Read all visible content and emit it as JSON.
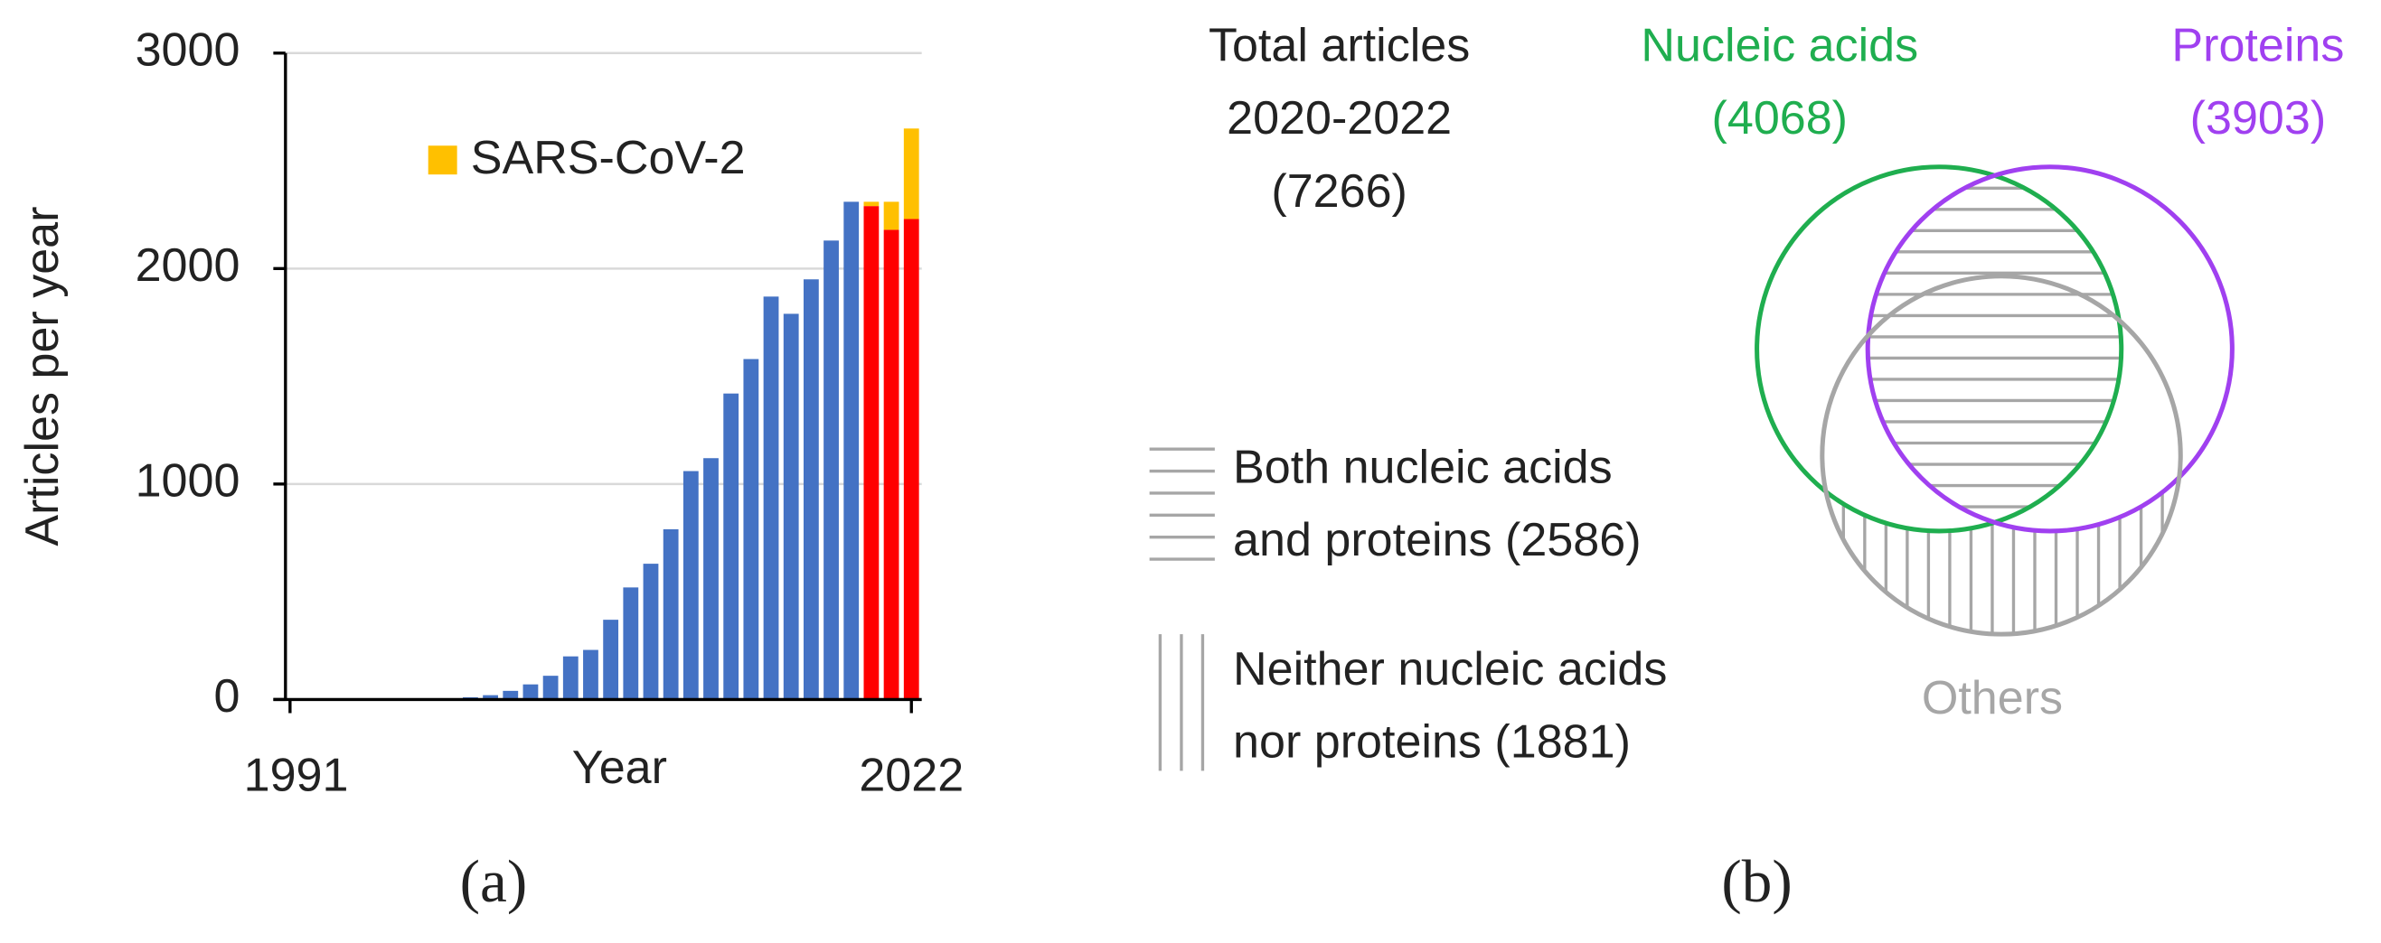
{
  "chart_data": {
    "type": "bar",
    "stacked": true,
    "xlabel": "Year",
    "ylabel": "Articles per year",
    "categories": [
      "1991",
      null,
      null,
      null,
      null,
      null,
      null,
      null,
      null,
      null,
      null,
      null,
      null,
      null,
      null,
      null,
      null,
      null,
      null,
      null,
      null,
      null,
      null,
      null,
      null,
      null,
      null,
      null,
      null,
      null,
      null,
      "2022"
    ],
    "series": [
      {
        "colors": [
          "#4472c4",
          "#4472c4",
          "#4472c4",
          "#4472c4",
          "#4472c4",
          "#4472c4",
          "#4472c4",
          "#4472c4",
          "#4472c4",
          "#4472c4",
          "#4472c4",
          "#4472c4",
          "#4472c4",
          "#4472c4",
          "#4472c4",
          "#4472c4",
          "#4472c4",
          "#4472c4",
          "#4472c4",
          "#4472c4",
          "#4472c4",
          "#4472c4",
          "#4472c4",
          "#4472c4",
          "#4472c4",
          "#4472c4",
          "#4472c4",
          "#4472c4",
          "#4472c4",
          "#ff0000",
          "#ff0000",
          "#ff0000"
        ],
        "values": [
          0,
          0,
          0,
          0,
          0,
          0,
          0,
          0,
          5,
          10,
          20,
          40,
          70,
          110,
          200,
          230,
          370,
          520,
          630,
          790,
          1060,
          1120,
          1420,
          1580,
          1870,
          1790,
          1950,
          2130,
          2310,
          2290,
          2180,
          2230
        ]
      },
      {
        "name": "SARS-CoV-2",
        "color": "#ffc000",
        "values": [
          null,
          null,
          null,
          null,
          null,
          null,
          null,
          null,
          null,
          null,
          null,
          null,
          null,
          null,
          null,
          null,
          null,
          null,
          null,
          null,
          null,
          null,
          null,
          null,
          null,
          null,
          null,
          null,
          null,
          20,
          130,
          420
        ]
      }
    ],
    "ylim": [
      0,
      3000
    ],
    "yticks": [
      0,
      1000,
      2000,
      3000
    ],
    "grid": true,
    "panel_label": "(a)"
  },
  "venn": {
    "total": [
      "Total articles",
      "2020-2022",
      "(7266)"
    ],
    "sets": [
      {
        "label": "Nucleic acids",
        "count": "(4068)",
        "color": "#1fae4f"
      },
      {
        "label": "Proteins",
        "count": "(3903)",
        "color": "#a040f0"
      },
      {
        "label": "Others",
        "color": "#a6a6a6"
      }
    ],
    "both": [
      "Both nucleic acids",
      "and proteins (2586)"
    ],
    "neither": [
      "Neither nucleic acids",
      "nor proteins (1881)"
    ],
    "panel_label": "(b)"
  }
}
